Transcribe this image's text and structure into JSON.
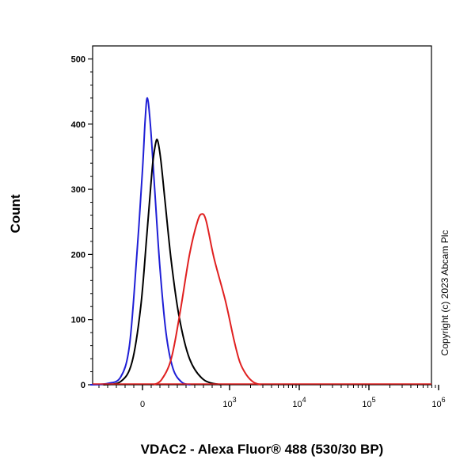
{
  "chart_data": {
    "type": "line",
    "title": "",
    "xlabel": "VDAC2 - Alexa Fluor® 488 (530/30 BP)",
    "ylabel": "Count",
    "x_scale": "biexponential",
    "x_ticks": [
      {
        "value": 0,
        "base": "0",
        "exp": ""
      },
      {
        "value": 1000,
        "base": "10",
        "exp": "3"
      },
      {
        "value": 10000,
        "base": "10",
        "exp": "4"
      },
      {
        "value": 100000,
        "base": "10",
        "exp": "5"
      },
      {
        "value": 1000000,
        "base": "10",
        "exp": "6"
      }
    ],
    "xlim": [
      -1000,
      1000000
    ],
    "ylim": [
      0,
      520
    ],
    "y_ticks": [
      0,
      100,
      200,
      300,
      400,
      500
    ],
    "grid": false,
    "series": [
      {
        "color": "#1f1fd6",
        "points": [
          [
            -600,
            0
          ],
          [
            -400,
            2
          ],
          [
            -250,
            12
          ],
          [
            -150,
            60
          ],
          [
            -70,
            190
          ],
          [
            0,
            330
          ],
          [
            30,
            405
          ],
          [
            55,
            440
          ],
          [
            90,
            400
          ],
          [
            140,
            300
          ],
          [
            200,
            180
          ],
          [
            270,
            80
          ],
          [
            350,
            25
          ],
          [
            450,
            4
          ],
          [
            550,
            0
          ]
        ]
      },
      {
        "color": "#000000",
        "points": [
          [
            -450,
            0
          ],
          [
            -250,
            5
          ],
          [
            -120,
            35
          ],
          [
            -20,
            120
          ],
          [
            50,
            230
          ],
          [
            110,
            330
          ],
          [
            150,
            370
          ],
          [
            175,
            374
          ],
          [
            210,
            345
          ],
          [
            260,
            280
          ],
          [
            330,
            190
          ],
          [
            420,
            105
          ],
          [
            540,
            40
          ],
          [
            700,
            8
          ],
          [
            900,
            0
          ]
        ]
      },
      {
        "color": "#e02020",
        "points": [
          [
            130,
            0
          ],
          [
            220,
            8
          ],
          [
            330,
            40
          ],
          [
            430,
            110
          ],
          [
            540,
            200
          ],
          [
            630,
            250
          ],
          [
            680,
            262
          ],
          [
            730,
            252
          ],
          [
            820,
            195
          ],
          [
            950,
            130
          ],
          [
            1150,
            70
          ],
          [
            1400,
            35
          ],
          [
            1750,
            15
          ],
          [
            2200,
            4
          ],
          [
            2800,
            0
          ]
        ]
      }
    ]
  },
  "copyright": "Copyright (c) 2023 Abcam Plc"
}
